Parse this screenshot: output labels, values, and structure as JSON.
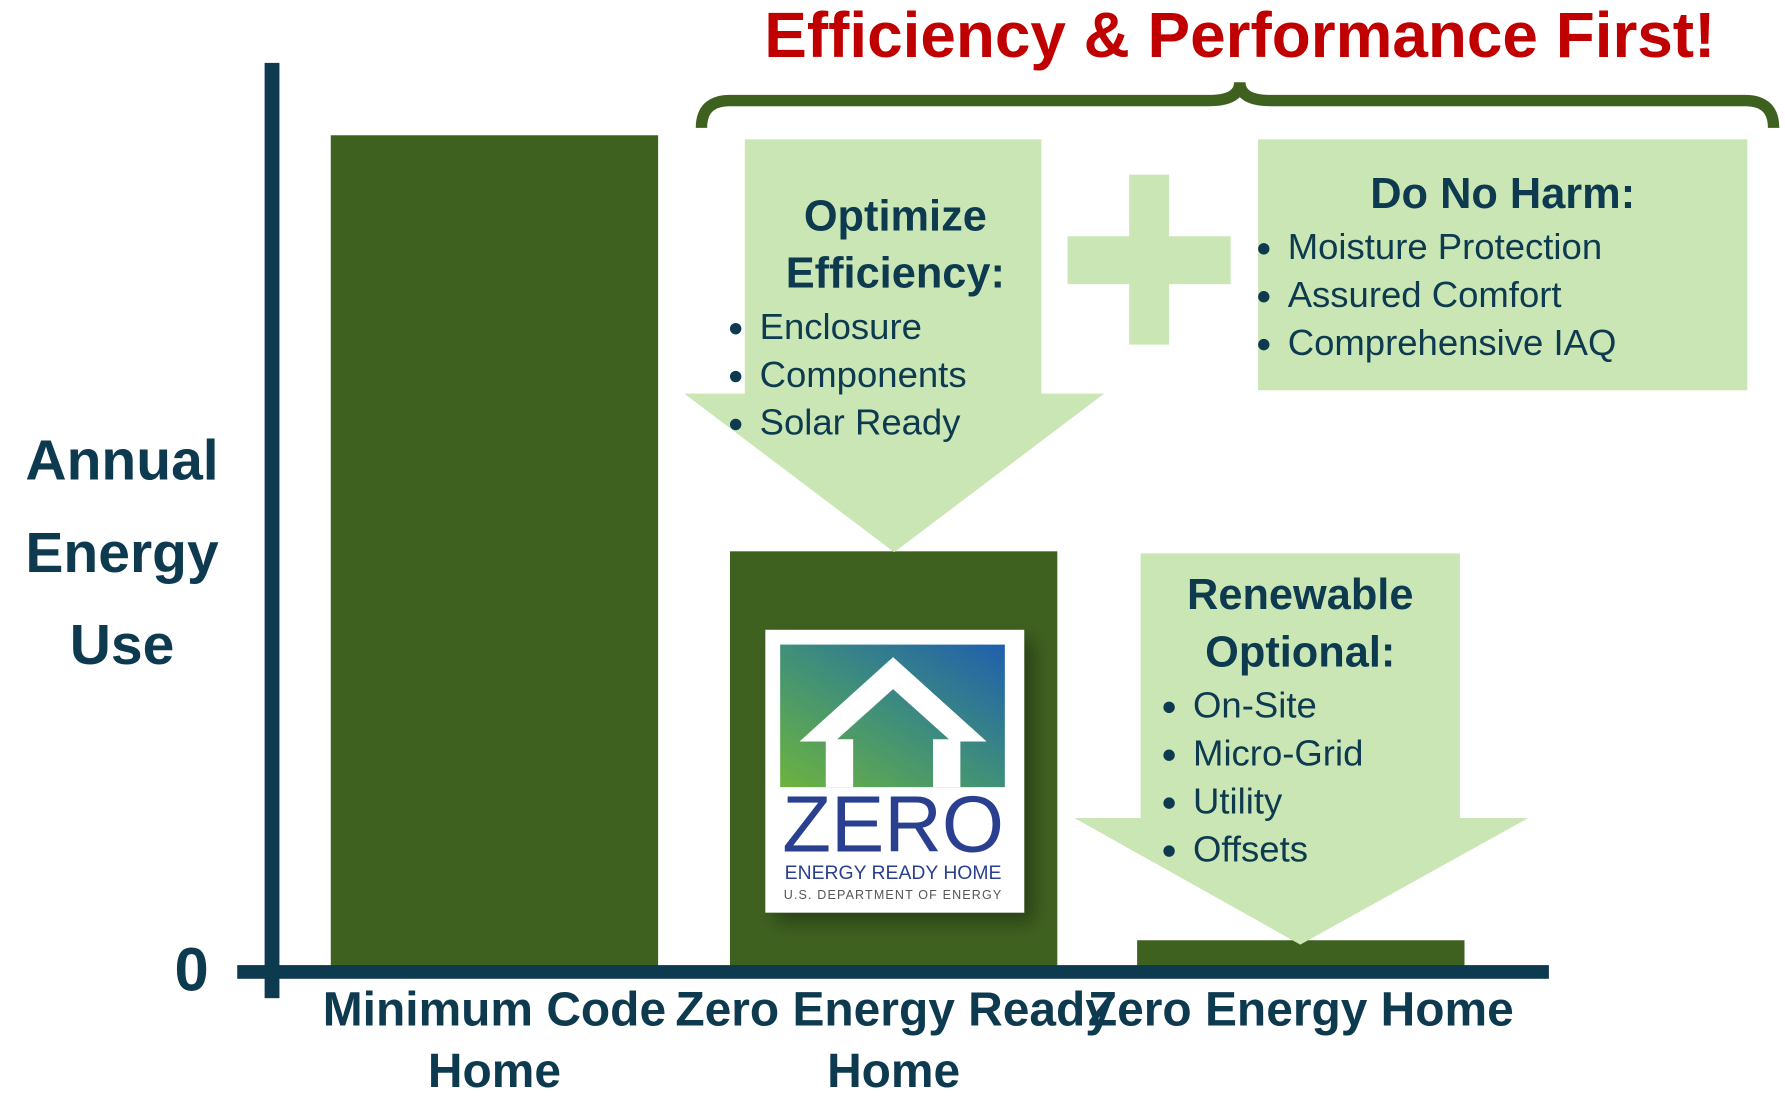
{
  "chart_data": {
    "type": "bar",
    "title": "Efficiency & Performance First!",
    "y_label": [
      "Annual",
      "Energy",
      "Use"
    ],
    "categories": [
      "Minimum Code Home",
      "Zero Energy Ready Home",
      "Zero Energy Home"
    ],
    "values": [
      92,
      46,
      3
    ],
    "color": "#3f6120",
    "ylim": [
      0,
      100
    ],
    "yticks": [
      0
    ],
    "callouts": [
      {
        "heading": "Optimize Efficiency:",
        "items": [
          "Enclosure",
          "Components",
          "Solar Ready"
        ]
      },
      {
        "heading": "Do No Harm:",
        "items": [
          "Moisture Protection",
          "Assured Comfort",
          "Comprehensive IAQ"
        ]
      },
      {
        "heading": "Renewable Optional:",
        "items": [
          "On-Site",
          "Micro-Grid",
          "Utility",
          "Offsets"
        ]
      }
    ],
    "logo": {
      "word": "ZERO",
      "line1": "ENERGY READY HOME",
      "line2": "U.S. DEPARTMENT OF ENERGY"
    }
  }
}
